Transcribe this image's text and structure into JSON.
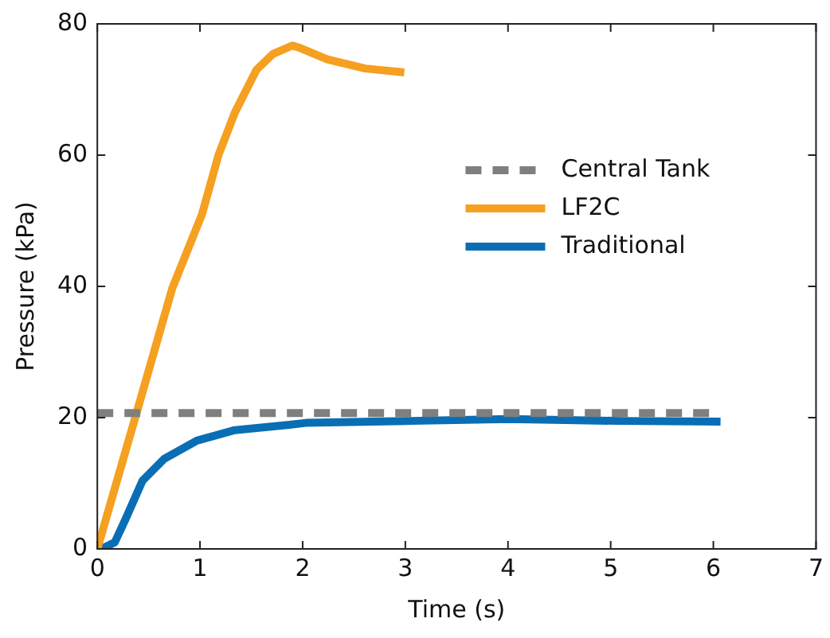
{
  "chart_data": {
    "type": "line",
    "xlabel": "Time (s)",
    "ylabel": "Pressure (kPa)",
    "xlim": [
      0,
      7
    ],
    "xticks": [
      0,
      1,
      2,
      3,
      4,
      5,
      6,
      7
    ],
    "ylim": [
      0,
      80
    ],
    "yticks": [
      0,
      20,
      40,
      60,
      80
    ],
    "grid": false,
    "legend": "top right",
    "marker": "none",
    "series": [
      {
        "name": "Central Tank",
        "color": "#7f7f7f",
        "line_style": "dashed",
        "x": [
          0,
          6
        ],
        "values": [
          20.7,
          20.7
        ]
      },
      {
        "name": "LF2C",
        "color": "#f5a020",
        "line_style": "solid",
        "x": [
          0,
          0.38,
          0.73,
          1.02,
          1.18,
          1.34,
          1.55,
          1.71,
          1.9,
          1.98,
          2.24,
          2.61,
          2.99
        ],
        "values": [
          0,
          20.6,
          39.7,
          51,
          60,
          66.5,
          73,
          75.4,
          76.7,
          76.3,
          74.6,
          73.2,
          72.6
        ]
      },
      {
        "name": "Traditional",
        "color": "#0a6eb4",
        "line_style": "solid",
        "x": [
          0.04,
          0.17,
          0.28,
          0.44,
          0.65,
          0.97,
          1.34,
          1.87,
          2.03,
          3.05,
          4.01,
          5.08,
          6.07
        ],
        "values": [
          0,
          1,
          4.7,
          10.4,
          13.7,
          16.5,
          18.1,
          18.9,
          19.2,
          19.5,
          19.8,
          19.5,
          19.4
        ]
      }
    ]
  }
}
